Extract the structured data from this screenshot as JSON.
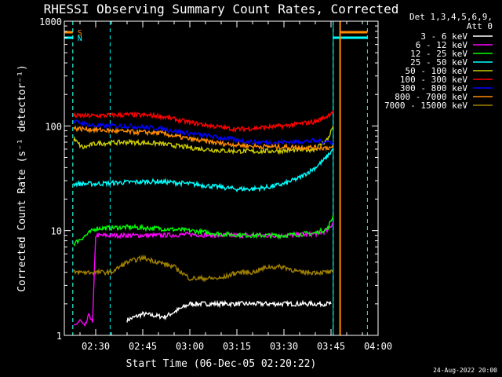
{
  "chart_data": {
    "type": "line",
    "title": "RHESSI Observing Summary Count Rates, Corrected",
    "xlabel": "Start Time (06-Dec-05 02:20:22)",
    "ylabel": "Corrected Count Rate (s⁻¹ detector⁻¹)",
    "y_scale": "log",
    "ylim": [
      1,
      1000
    ],
    "y_ticks": [
      1,
      10,
      100,
      1000
    ],
    "y_tick_labels": [
      "1",
      "10",
      "100",
      "1000"
    ],
    "xlim": [
      "02:20",
      "04:00"
    ],
    "x_ticks": [
      "02:30",
      "02:45",
      "03:00",
      "03:15",
      "03:30",
      "03:45",
      "04:00"
    ],
    "x_ticks_min": [
      10,
      25,
      40,
      55,
      70,
      85,
      100
    ],
    "grid": false,
    "legend_position": "top-right",
    "legend_header": [
      "Det 1,3,4,5,6,9,",
      "Att 0"
    ],
    "footer_date": "24-Aug-2022 20:00",
    "markers": [
      {
        "label": "S",
        "color": "#ff8c00",
        "start_min": 2.7,
        "end_min": 87.9
      },
      {
        "label": "N",
        "color": "#00ffff",
        "start_min": 2.7,
        "end_min": 14.6
      },
      {
        "label": "",
        "color": "#00ffff",
        "start_min": 85.7,
        "end_min": 96.6
      }
    ],
    "series": [
      {
        "name": "3 - 6 keV",
        "color": "#ffffff",
        "x": [
          20,
          25,
          32,
          40,
          50,
          60,
          65,
          70,
          75,
          80,
          85
        ],
        "y": [
          1.4,
          1.6,
          1.5,
          2.0,
          2.0,
          2.0,
          2.0,
          2.0,
          2.0,
          2.0,
          2.0
        ]
      },
      {
        "name": "6 - 12 keV",
        "color": "#ff00ff",
        "x": [
          3,
          5,
          6.5,
          8,
          9,
          10,
          20,
          30,
          40,
          50,
          60,
          70,
          80,
          84,
          85.7
        ],
        "y": [
          1.2,
          1.4,
          1.2,
          1.6,
          1.3,
          9.0,
          9.0,
          9.0,
          9.2,
          9.0,
          9.0,
          9.0,
          9.3,
          10,
          12
        ]
      },
      {
        "name": "12 - 25 keV",
        "color": "#00ff00",
        "x": [
          3,
          10,
          20,
          30,
          40,
          50,
          60,
          70,
          80,
          84,
          85.7
        ],
        "y": [
          7.5,
          10.5,
          10.8,
          10.5,
          10.0,
          9.3,
          9.0,
          9.0,
          9.5,
          10.5,
          14
        ]
      },
      {
        "name": "25 - 50 keV",
        "color": "#00ffff",
        "x": [
          3,
          10,
          20,
          30,
          40,
          50,
          55,
          60,
          65,
          70,
          75,
          80,
          83,
          85.7
        ],
        "y": [
          28,
          28,
          29,
          29.5,
          28,
          26,
          25,
          25,
          26,
          28,
          32,
          40,
          48,
          60
        ]
      },
      {
        "name": "50 - 100 keV",
        "color": "#cccc00",
        "x": [
          3,
          5,
          6,
          10,
          20,
          30,
          40,
          50,
          60,
          70,
          80,
          84,
          85.7
        ],
        "y": [
          75,
          65,
          62,
          68,
          70,
          68,
          62,
          58,
          57,
          58,
          60,
          75,
          100
        ]
      },
      {
        "name": "100 - 300 keV",
        "color": "#ff0000",
        "x": [
          3,
          10,
          20,
          30,
          40,
          50,
          55,
          60,
          70,
          80,
          84,
          85.7
        ],
        "y": [
          125,
          125,
          128,
          125,
          108,
          97,
          93,
          95,
          100,
          110,
          125,
          140
        ]
      },
      {
        "name": "300 - 800 keV",
        "color": "#0000ff",
        "x": [
          3,
          10,
          20,
          30,
          40,
          50,
          60,
          70,
          80,
          85.7
        ],
        "y": [
          110,
          100,
          100,
          95,
          85,
          77,
          70,
          70,
          72,
          70
        ]
      },
      {
        "name": "800 - 7000 keV",
        "color": "#ff8c00",
        "x": [
          3,
          10,
          20,
          30,
          40,
          50,
          60,
          70,
          80,
          85.7
        ],
        "y": [
          95,
          92,
          88,
          86,
          75,
          68,
          64,
          63,
          62,
          62
        ]
      },
      {
        "name": "7000 - 15000 keV",
        "color": "#a08000",
        "x": [
          3,
          10,
          15,
          20,
          25,
          30,
          35,
          40,
          45,
          50,
          55,
          60,
          65,
          70,
          75,
          80,
          85.7
        ],
        "y": [
          4.0,
          4.0,
          4.0,
          5.0,
          5.5,
          5.0,
          4.5,
          3.5,
          3.5,
          3.5,
          4.0,
          4.0,
          4.5,
          4.5,
          4.0,
          4.0,
          4.0
        ]
      }
    ]
  }
}
